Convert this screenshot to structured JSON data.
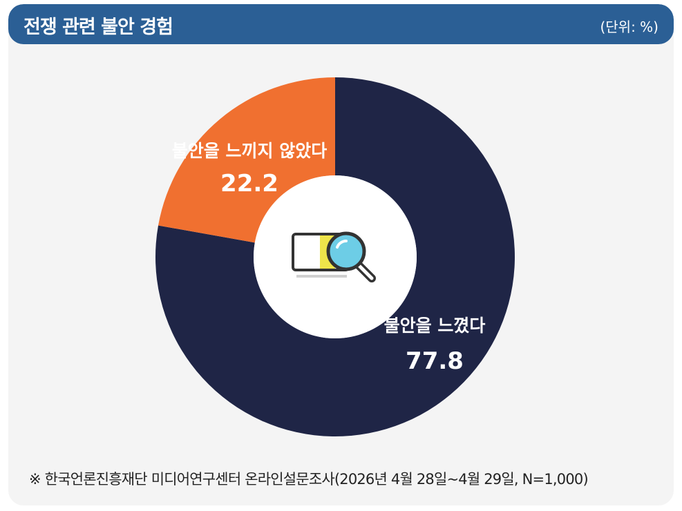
{
  "header": {
    "title": "전쟁 관련 불안 경험",
    "unit": "(단위: %)"
  },
  "chart_data": {
    "type": "pie",
    "donut": true,
    "slices": [
      {
        "label": "불안을 느꼈다",
        "value": 77.8,
        "color": "#1f2546"
      },
      {
        "label": "불안을 느끼지 않았다",
        "value": 22.2,
        "color": "#f07030"
      }
    ],
    "start_angle": "12 o'clock",
    "direction": "clockwise",
    "center_icon": "magnifier-icon"
  },
  "footnote": "※ 한국언론진흥재단 미디어연구센터 온라인설문조사(2026년 4월 28일~4월 29일, N=1,000)"
}
